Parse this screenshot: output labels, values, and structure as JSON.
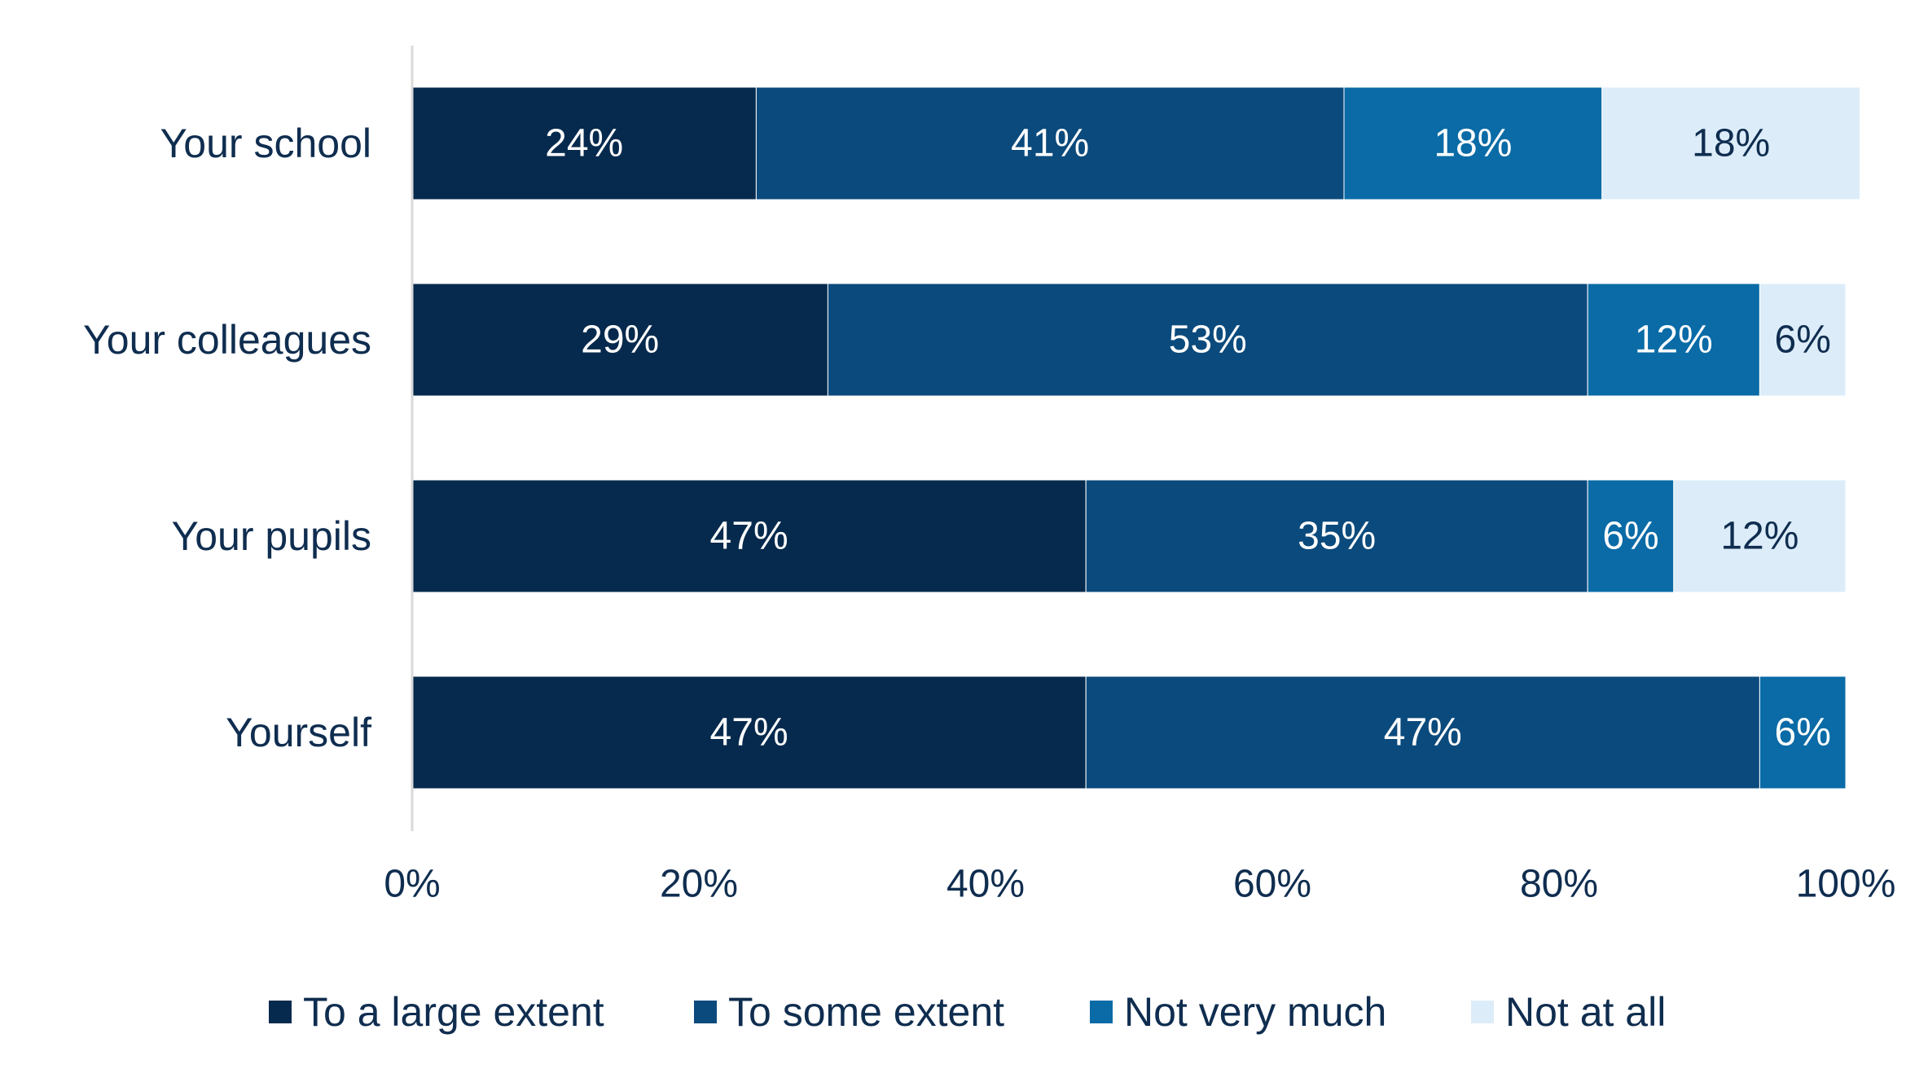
{
  "chart_data": {
    "type": "bar",
    "orientation": "horizontal",
    "stacked": true,
    "categories": [
      "Your school",
      "Your colleagues",
      "Your pupils",
      "Yourself"
    ],
    "series": [
      {
        "name": "To a large extent",
        "color": "#062a4d",
        "values": [
          24,
          29,
          47,
          47
        ],
        "labels": [
          "24%",
          "29%",
          "47%",
          "47%"
        ]
      },
      {
        "name": "To some extent",
        "color": "#0b4a7c",
        "values": [
          41,
          53,
          35,
          47
        ],
        "labels": [
          "41%",
          "53%",
          "35%",
          "47%"
        ]
      },
      {
        "name": "Not very much",
        "color": "#0a6ba6",
        "values": [
          18,
          12,
          6,
          6
        ],
        "labels": [
          "18%",
          "12%",
          "6%",
          "6%"
        ]
      },
      {
        "name": "Not at all",
        "color": "#dcecf9",
        "values": [
          18,
          6,
          12,
          0
        ],
        "labels": [
          "18%",
          "6%",
          "12%",
          ""
        ]
      }
    ],
    "xlim": [
      0,
      100
    ],
    "xticks": [
      "0%",
      "20%",
      "40%",
      "60%",
      "80%",
      "100%"
    ],
    "grid": false,
    "legend_position": "bottom"
  }
}
